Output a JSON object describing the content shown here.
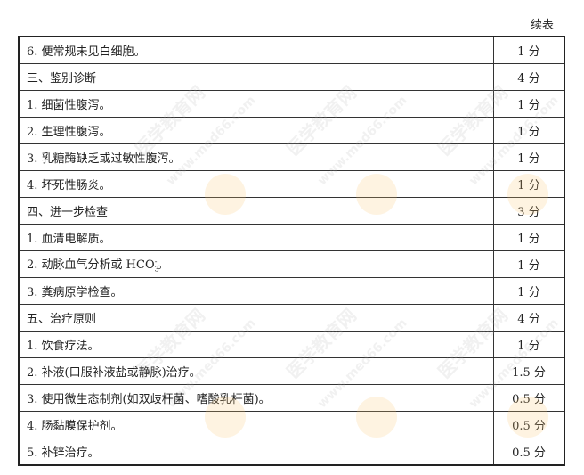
{
  "header": {
    "continued": "续表"
  },
  "rows": [
    {
      "item": "6. 便常规未见白细胞。",
      "score": "1 分"
    },
    {
      "item": "三、鉴别诊断",
      "score": "4 分"
    },
    {
      "item": "1. 细菌性腹泻。",
      "score": "1 分"
    },
    {
      "item": "2. 生理性腹泻。",
      "score": "1 分"
    },
    {
      "item": "3. 乳糖酶缺乏或过敏性腹泻。",
      "score": "1 分"
    },
    {
      "item": "4. 坏死性肠炎。",
      "score": "1 分"
    },
    {
      "item": "四、进一步检查",
      "score": "3 分"
    },
    {
      "item": "1. 血清电解质。",
      "score": "1 分"
    },
    {
      "item_parts": {
        "text": "2. 动脉血气分析或 HCO",
        "sub": "3",
        "sup": "-",
        "end": "。"
      },
      "score": "1 分"
    },
    {
      "item": "3. 粪病原学检查。",
      "score": "1 分"
    },
    {
      "item": "五、治疗原则",
      "score": "4 分"
    },
    {
      "item": "1. 饮食疗法。",
      "score": "1 分"
    },
    {
      "item": "2. 补液(口服补液盐或静脉)治疗。",
      "score": "1.5 分"
    },
    {
      "item": "3. 使用微生态制剂(如双歧杆菌、嗜酸乳杆菌)。",
      "score": "0.5 分"
    },
    {
      "item": "4. 肠黏膜保护剂。",
      "score": "0.5 分"
    },
    {
      "item": "5. 补锌治疗。",
      "score": "0.5 分"
    }
  ],
  "watermark": {
    "cn": "医学教育网",
    "url": "www.med66.com"
  }
}
